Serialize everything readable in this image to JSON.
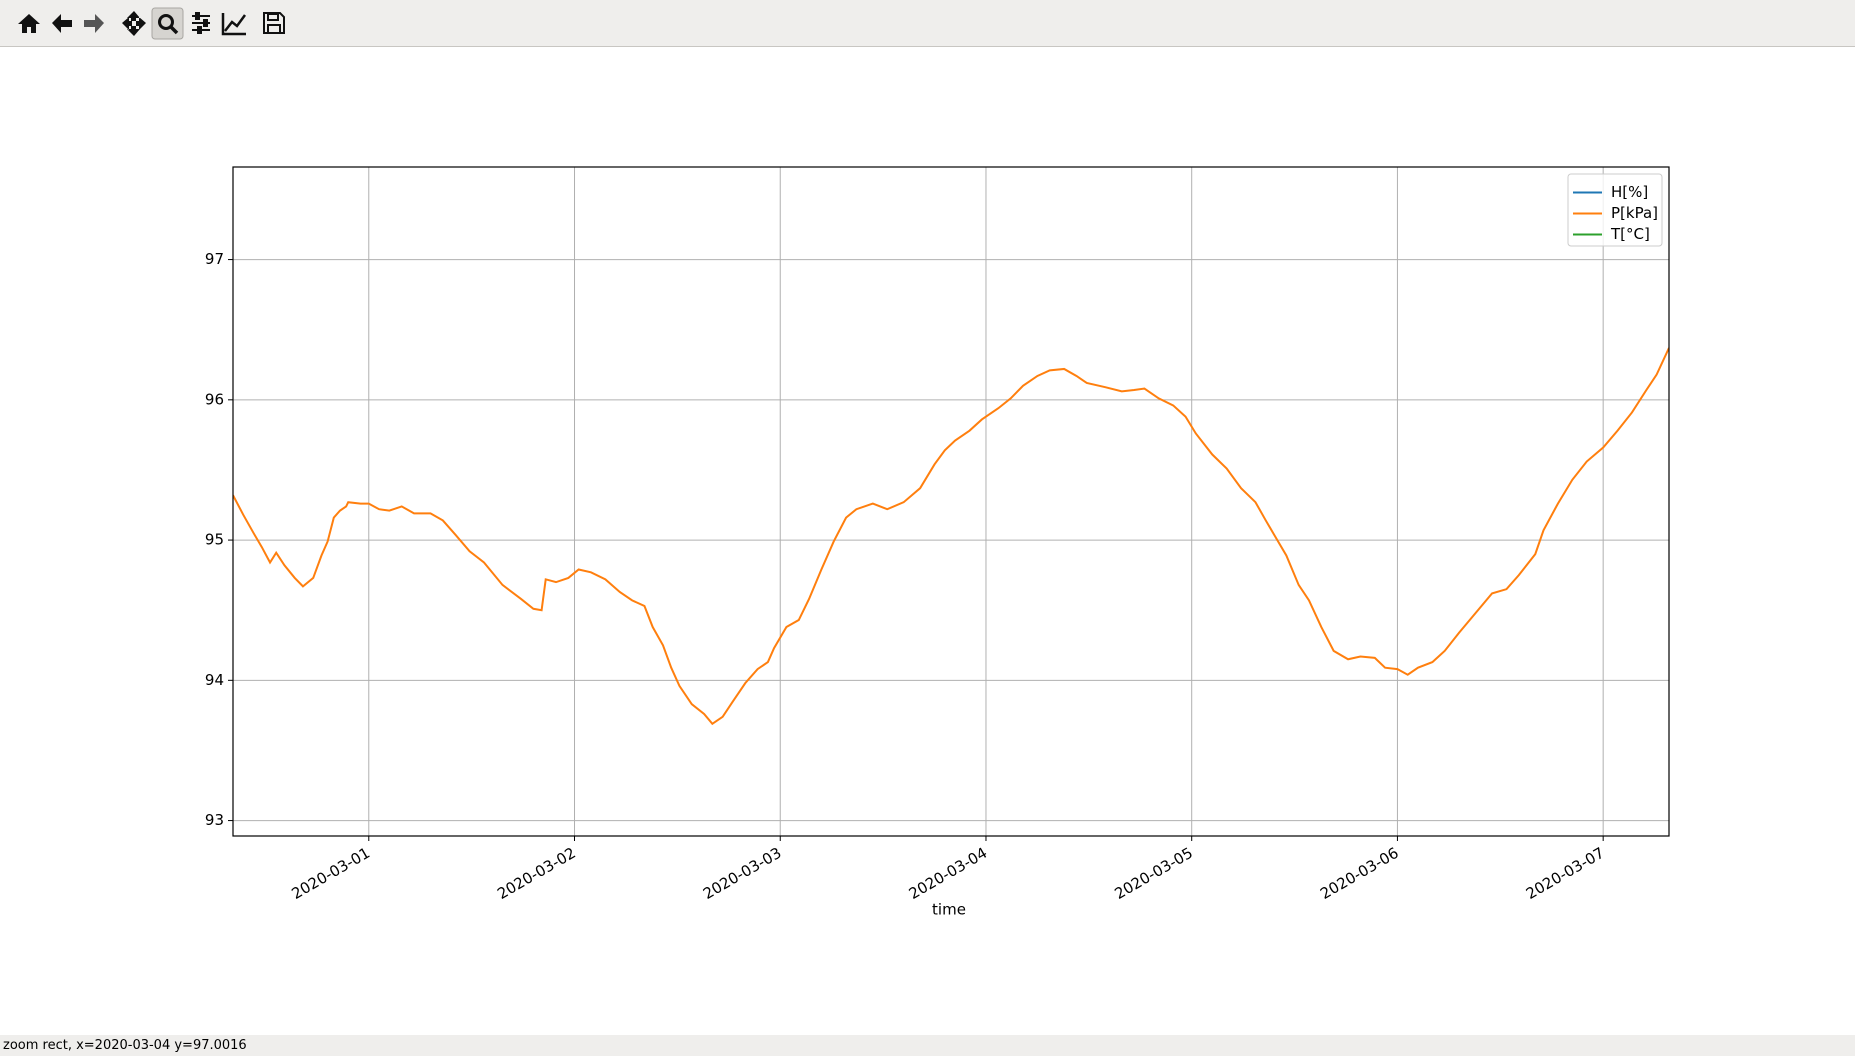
{
  "chart_data": {
    "type": "line",
    "x_label": "time",
    "x": [
      0.34,
      0.39,
      0.44,
      0.48,
      0.52,
      0.55,
      0.59,
      0.64,
      0.68,
      0.73,
      0.77,
      0.8,
      0.83,
      0.86,
      0.89,
      0.9,
      0.96,
      1.0,
      1.05,
      1.1,
      1.16,
      1.22,
      1.3,
      1.36,
      1.42,
      1.49,
      1.56,
      1.65,
      1.74,
      1.8,
      1.84,
      1.86,
      1.91,
      1.97,
      2.02,
      2.08,
      2.15,
      2.22,
      2.28,
      2.34,
      2.38,
      2.43,
      2.47,
      2.51,
      2.57,
      2.63,
      2.67,
      2.72,
      2.77,
      2.83,
      2.89,
      2.94,
      2.97,
      3.03,
      3.09,
      3.14,
      3.2,
      3.26,
      3.32,
      3.37,
      3.45,
      3.52,
      3.6,
      3.68,
      3.75,
      3.8,
      3.85,
      3.92,
      3.98,
      4.06,
      4.12,
      4.18,
      4.25,
      4.31,
      4.38,
      4.44,
      4.49,
      4.58,
      4.66,
      4.72,
      4.77,
      4.84,
      4.91,
      4.97,
      5.02,
      5.1,
      5.17,
      5.24,
      5.31,
      5.36,
      5.4,
      5.46,
      5.52,
      5.57,
      5.63,
      5.69,
      5.76,
      5.82,
      5.89,
      5.94,
      6.0,
      6.05,
      6.1,
      6.17,
      6.23,
      6.3,
      6.38,
      6.46,
      6.53,
      6.59,
      6.67,
      6.71,
      6.78,
      6.85,
      6.92,
      7.0,
      7.07,
      7.14,
      7.21,
      7.26,
      7.32
    ],
    "series": [
      {
        "name": "H[%]",
        "color": "#1f77b4"
      },
      {
        "name": "P[kPa]",
        "color": "#ff7f0e",
        "values": [
          95.32,
          95.18,
          95.05,
          94.95,
          94.84,
          94.91,
          94.82,
          94.73,
          94.67,
          94.73,
          94.89,
          94.99,
          95.16,
          95.21,
          95.24,
          95.27,
          95.26,
          95.26,
          95.22,
          95.21,
          95.24,
          95.19,
          95.19,
          95.14,
          95.04,
          94.92,
          94.84,
          94.68,
          94.58,
          94.51,
          94.5,
          94.72,
          94.7,
          94.73,
          94.79,
          94.77,
          94.72,
          94.63,
          94.57,
          94.53,
          94.38,
          94.25,
          94.09,
          93.96,
          93.83,
          93.76,
          93.69,
          93.74,
          93.85,
          93.98,
          94.08,
          94.13,
          94.23,
          94.38,
          94.43,
          94.58,
          94.79,
          94.99,
          95.16,
          95.22,
          95.26,
          95.22,
          95.27,
          95.37,
          95.54,
          95.64,
          95.71,
          95.78,
          95.86,
          95.94,
          96.01,
          96.1,
          96.17,
          96.21,
          96.22,
          96.17,
          96.12,
          96.09,
          96.06,
          96.07,
          96.08,
          96.01,
          95.96,
          95.88,
          95.76,
          95.61,
          95.51,
          95.37,
          95.27,
          95.14,
          95.04,
          94.89,
          94.68,
          94.57,
          94.38,
          94.21,
          94.15,
          94.17,
          94.16,
          94.09,
          94.08,
          94.04,
          94.09,
          94.13,
          94.21,
          94.34,
          94.48,
          94.62,
          94.65,
          94.75,
          94.9,
          95.07,
          95.26,
          95.43,
          95.56,
          95.66,
          95.78,
          95.91,
          96.07,
          96.18,
          96.37
        ]
      },
      {
        "name": "T[°C]",
        "color": "#2ca02c"
      }
    ],
    "xlim": [
      0.34,
      7.32
    ],
    "xticks": [
      {
        "value": 1,
        "label": "2020-03-01"
      },
      {
        "value": 2,
        "label": "2020-03-02"
      },
      {
        "value": 3,
        "label": "2020-03-03"
      },
      {
        "value": 4,
        "label": "2020-03-04"
      },
      {
        "value": 5,
        "label": "2020-03-05"
      },
      {
        "value": 6,
        "label": "2020-03-06"
      },
      {
        "value": 7,
        "label": "2020-03-07"
      }
    ],
    "ylim": [
      92.89,
      97.66
    ],
    "yticks": [
      93,
      94,
      95,
      96,
      97
    ],
    "grid": true,
    "legend": "upper right"
  },
  "status_bar": "zoom rect, x=2020-03-04 y=97.0016"
}
